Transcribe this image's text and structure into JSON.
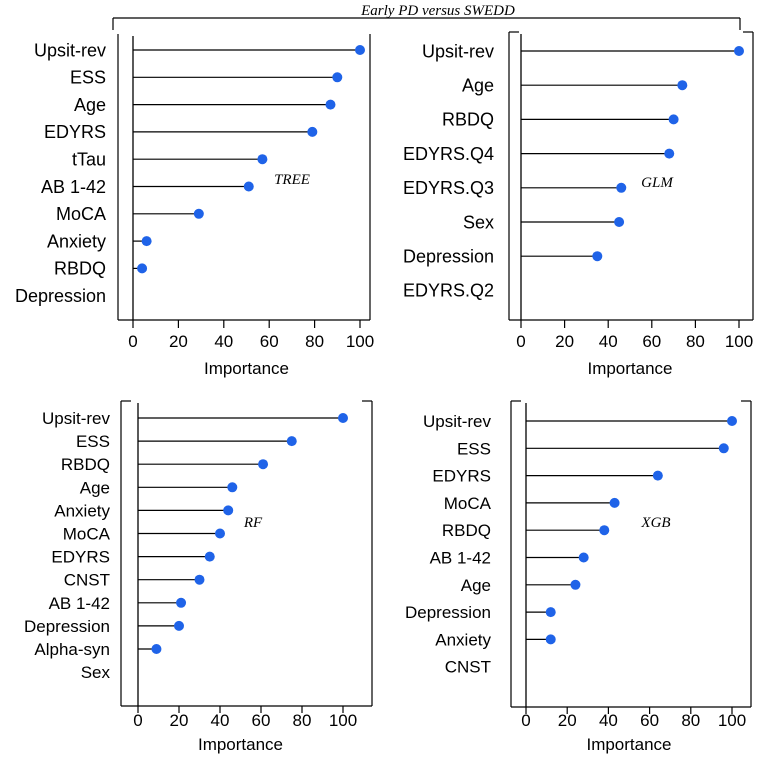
{
  "figure_title": "Early PD versus SWEDD",
  "colors": {
    "point": "#1f63e8",
    "stem": "#000000",
    "axis": "#000000"
  },
  "chart_data": [
    {
      "id": "tree",
      "type": "lollipop",
      "model_label": "TREE",
      "xlabel": "Importance",
      "xlim": [
        0,
        100
      ],
      "xticks": [
        0,
        20,
        40,
        60,
        80,
        100
      ],
      "categories": [
        "Upsit-rev",
        "ESS",
        "Age",
        "EDYRS",
        "tTau",
        "AB 1-42",
        "MoCA",
        "Anxiety",
        "RBDQ",
        "Depression"
      ],
      "values": [
        100,
        90,
        87,
        79,
        57,
        51,
        29,
        6,
        4,
        null
      ]
    },
    {
      "id": "glm",
      "type": "lollipop",
      "model_label": "GLM",
      "xlabel": "Importance",
      "xlim": [
        0,
        100
      ],
      "xticks": [
        0,
        20,
        40,
        60,
        80,
        100
      ],
      "categories": [
        "Upsit-rev",
        "Age",
        "RBDQ",
        "EDYRS.Q4",
        "EDYRS.Q3",
        "Sex",
        "Depression",
        "EDYRS.Q2"
      ],
      "values": [
        100,
        74,
        70,
        68,
        46,
        45,
        35,
        null
      ]
    },
    {
      "id": "rf",
      "type": "lollipop",
      "model_label": "RF",
      "xlabel": "Importance",
      "xlim": [
        0,
        100
      ],
      "xticks": [
        0,
        20,
        40,
        60,
        80,
        100
      ],
      "categories": [
        "Upsit-rev",
        "ESS",
        "RBDQ",
        "Age",
        "Anxiety",
        "MoCA",
        "EDYRS",
        "CNST",
        "AB 1-42",
        "Depression",
        "Alpha-syn",
        "Sex"
      ],
      "values": [
        100,
        75,
        61,
        46,
        44,
        40,
        35,
        30,
        21,
        20,
        9,
        null
      ]
    },
    {
      "id": "xgb",
      "type": "lollipop",
      "model_label": "XGB",
      "xlabel": "Importance",
      "xlim": [
        0,
        100
      ],
      "xticks": [
        0,
        20,
        40,
        60,
        80,
        100
      ],
      "categories": [
        "Upsit-rev",
        "ESS",
        "EDYRS",
        "MoCA",
        "RBDQ",
        "AB 1-42",
        "Age",
        "Depression",
        "Anxiety",
        "CNST"
      ],
      "values": [
        100,
        96,
        64,
        43,
        38,
        28,
        24,
        12,
        12,
        null
      ]
    }
  ]
}
